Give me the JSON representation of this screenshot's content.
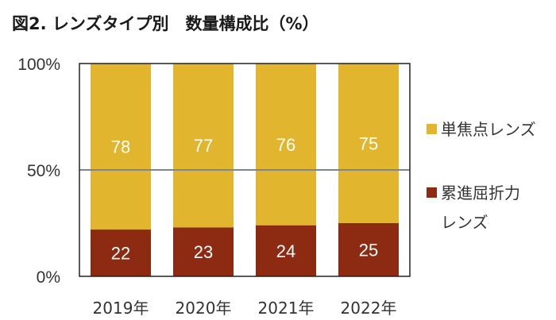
{
  "title": "図2. レンズタイプ別　数量構成比（%）",
  "colors": {
    "single": "#E2B52E",
    "progressive": "#8C2A12",
    "frame": "#222222",
    "grid": "#7f8590"
  },
  "chart_data": {
    "type": "bar",
    "stacked": true,
    "percent": true,
    "title": "図2. レンズタイプ別　数量構成比（%）",
    "categories": [
      "2019年",
      "2020年",
      "2021年",
      "2022年"
    ],
    "series": [
      {
        "name": "累進屈折力レンズ",
        "values": [
          22,
          23,
          24,
          25
        ]
      },
      {
        "name": "単焦点レンズ",
        "values": [
          78,
          77,
          76,
          75
        ]
      }
    ],
    "yticks": [
      "0%",
      "50%",
      "100%"
    ],
    "ylim": [
      0,
      100
    ],
    "legend_position": "right",
    "legend": [
      {
        "lines": [
          "単焦点レンズ"
        ]
      },
      {
        "lines": [
          "累進屈折力",
          "レンズ"
        ]
      }
    ],
    "gridline": 50
  }
}
